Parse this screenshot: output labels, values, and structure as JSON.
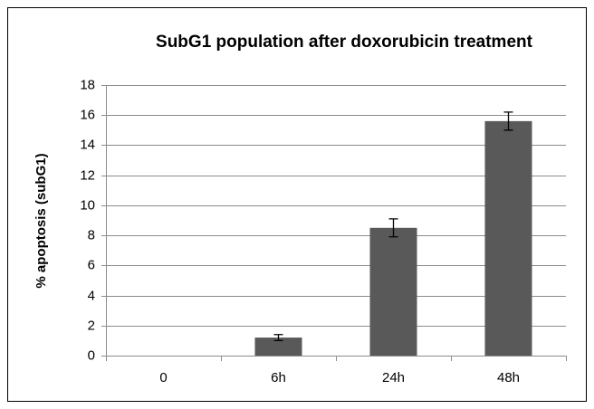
{
  "chart_data": {
    "type": "bar",
    "title": "SubG1 population after doxorubicin treatment",
    "y_label": "% apoptosis (subG1)",
    "categories": [
      "0",
      "6h",
      "24h",
      "48h"
    ],
    "values": [
      0,
      1.2,
      8.5,
      15.6
    ],
    "errors": [
      null,
      0.2,
      0.6,
      0.6
    ],
    "color": "#595959",
    "ylim": [
      0,
      18
    ],
    "yticks": [
      0,
      2,
      4,
      6,
      8,
      10,
      12,
      14,
      16,
      18
    ],
    "grid": true
  }
}
